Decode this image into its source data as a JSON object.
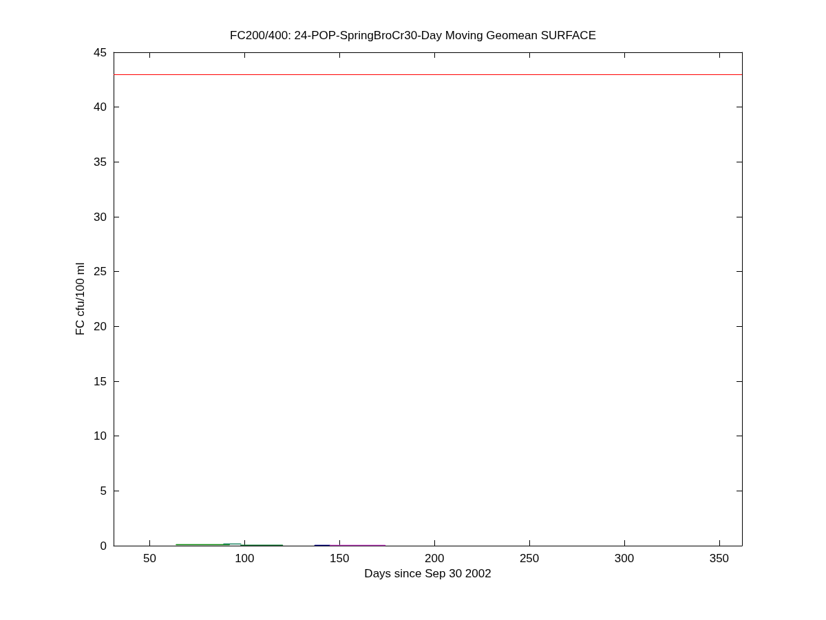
{
  "chart_data": {
    "type": "line",
    "title": "FC200/400: 24-POP-SpringBroCr30-Day Moving Geomean SURFACE",
    "xlabel": "Days since Sep 30 2002",
    "ylabel": "FC cfu/100 ml",
    "xlim": [
      31,
      362
    ],
    "xticks": [
      50,
      100,
      150,
      200,
      250,
      300,
      350
    ],
    "ylim": [
      0,
      45
    ],
    "yticks": [
      0,
      5,
      10,
      15,
      20,
      25,
      30,
      35,
      40,
      45
    ],
    "grid": false,
    "marker": "none",
    "line_style": "solid",
    "series": [
      {
        "color": "#008000",
        "x": [
          64,
          92
        ],
        "values": [
          0.1,
          0.1
        ]
      },
      {
        "color": "#1a8060",
        "x": [
          89,
          98
        ],
        "values": [
          0.15,
          0.15
        ]
      },
      {
        "color": "#208040",
        "x": [
          98,
          120
        ],
        "values": [
          0.05,
          0.05
        ]
      },
      {
        "color": "#000080",
        "x": [
          137,
          145
        ],
        "values": [
          0.03,
          0.03
        ]
      },
      {
        "color": "#c040c0",
        "x": [
          145,
          174
        ],
        "values": [
          0.03,
          0.03
        ]
      }
    ],
    "ref_lines": [
      {
        "axis": "y",
        "value": 43,
        "color": "#ff0000",
        "line_style": "solid"
      }
    ]
  }
}
